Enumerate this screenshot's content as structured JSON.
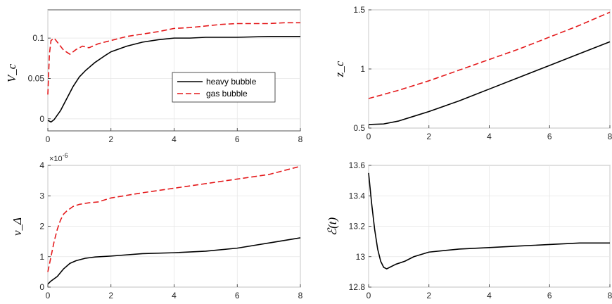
{
  "chart_data": [
    {
      "id": "vc",
      "type": "line",
      "ylabel": "V_c",
      "xlim": [
        0,
        8
      ],
      "ylim": [
        -0.015,
        0.135
      ],
      "xticks": [
        0,
        2,
        4,
        6,
        8
      ],
      "yticks": [
        0,
        0.05,
        0.1
      ],
      "ytick_labels": [
        "0",
        "0.05",
        "0.1"
      ],
      "grid": true,
      "legend": "center-right",
      "series": [
        {
          "name": "heavy bubble",
          "color": "#000000",
          "dash": "solid",
          "x": [
            0,
            0.1,
            0.2,
            0.4,
            0.6,
            0.8,
            1.0,
            1.2,
            1.5,
            1.8,
            2.0,
            2.5,
            3.0,
            3.5,
            4.0,
            4.5,
            5.0,
            6.0,
            7.0,
            8.0
          ],
          "y": [
            -0.002,
            -0.004,
            -0.001,
            0.01,
            0.025,
            0.04,
            0.052,
            0.06,
            0.07,
            0.078,
            0.083,
            0.09,
            0.095,
            0.098,
            0.1,
            0.1,
            0.101,
            0.101,
            0.102,
            0.102
          ]
        },
        {
          "name": "gas bubble",
          "color": "#e41a1c",
          "dash": "dashed",
          "x": [
            0,
            0.05,
            0.1,
            0.2,
            0.3,
            0.5,
            0.7,
            0.9,
            1.1,
            1.3,
            1.6,
            2.0,
            2.5,
            3.0,
            3.5,
            4.0,
            4.5,
            5.0,
            5.5,
            6.0,
            6.5,
            7.0,
            7.5,
            8.0
          ],
          "y": [
            0.03,
            0.08,
            0.097,
            0.1,
            0.095,
            0.085,
            0.08,
            0.086,
            0.09,
            0.088,
            0.093,
            0.097,
            0.102,
            0.105,
            0.108,
            0.112,
            0.113,
            0.115,
            0.117,
            0.118,
            0.118,
            0.118,
            0.119,
            0.119
          ]
        }
      ]
    },
    {
      "id": "zc",
      "type": "line",
      "ylabel": "z_c",
      "xlim": [
        0,
        8
      ],
      "ylim": [
        0.5,
        1.5
      ],
      "xticks": [
        0,
        2,
        4,
        6,
        8
      ],
      "yticks": [
        0.5,
        1,
        1.5
      ],
      "ytick_labels": [
        "0.5",
        "1",
        "1.5"
      ],
      "grid": true,
      "series": [
        {
          "name": "heavy bubble",
          "color": "#000000",
          "dash": "solid",
          "x": [
            0,
            0.5,
            1.0,
            1.5,
            2,
            3,
            4,
            5,
            6,
            7,
            8
          ],
          "y": [
            0.53,
            0.535,
            0.56,
            0.6,
            0.64,
            0.73,
            0.83,
            0.93,
            1.03,
            1.13,
            1.23
          ]
        },
        {
          "name": "gas bubble",
          "color": "#e41a1c",
          "dash": "dashed",
          "x": [
            0,
            1,
            2,
            3,
            4,
            5,
            6,
            7,
            8
          ],
          "y": [
            0.75,
            0.82,
            0.9,
            0.99,
            1.08,
            1.17,
            1.27,
            1.37,
            1.48
          ]
        }
      ]
    },
    {
      "id": "vdelta",
      "type": "line",
      "ylabel": "v_Δ",
      "exponent_label": "×10^-6",
      "xlim": [
        0,
        8
      ],
      "ylim": [
        0,
        4
      ],
      "xticks": [
        0,
        2,
        4,
        6,
        8
      ],
      "yticks": [
        0,
        1,
        2,
        3,
        4
      ],
      "ytick_labels": [
        "0",
        "1",
        "2",
        "3",
        "4"
      ],
      "grid": true,
      "series": [
        {
          "name": "heavy bubble",
          "color": "#000000",
          "dash": "solid",
          "x": [
            0,
            0.1,
            0.3,
            0.5,
            0.7,
            0.9,
            1.2,
            1.5,
            2,
            3,
            4,
            5,
            6,
            7,
            8
          ],
          "y": [
            0.1,
            0.2,
            0.35,
            0.6,
            0.78,
            0.87,
            0.95,
            0.99,
            1.02,
            1.1,
            1.13,
            1.18,
            1.28,
            1.45,
            1.62
          ]
        },
        {
          "name": "gas bubble",
          "color": "#e41a1c",
          "dash": "dashed",
          "x": [
            0,
            0.1,
            0.2,
            0.3,
            0.4,
            0.5,
            0.6,
            0.8,
            1.0,
            1.3,
            1.6,
            2,
            3,
            4,
            5,
            6,
            7,
            8
          ],
          "y": [
            0.5,
            1.0,
            1.5,
            1.9,
            2.2,
            2.4,
            2.5,
            2.65,
            2.72,
            2.77,
            2.8,
            2.93,
            3.1,
            3.25,
            3.4,
            3.55,
            3.7,
            3.97
          ]
        }
      ]
    },
    {
      "id": "energy",
      "type": "line",
      "ylabel": "ℰ(t)",
      "xlim": [
        0,
        8
      ],
      "ylim": [
        12.8,
        13.6
      ],
      "xticks": [
        0,
        2,
        4,
        6,
        8
      ],
      "yticks": [
        12.8,
        13,
        13.2,
        13.4,
        13.6
      ],
      "ytick_labels": [
        "12.8",
        "13",
        "13.2",
        "13.4",
        "13.6"
      ],
      "grid": true,
      "series": [
        {
          "name": "heavy bubble",
          "color": "#000000",
          "dash": "solid",
          "x": [
            0,
            0.1,
            0.2,
            0.3,
            0.4,
            0.5,
            0.6,
            0.7,
            0.9,
            1.2,
            1.5,
            2,
            2.5,
            3,
            4,
            5,
            6,
            7,
            8
          ],
          "y": [
            13.55,
            13.35,
            13.18,
            13.05,
            12.97,
            12.93,
            12.92,
            12.93,
            12.95,
            12.97,
            13.0,
            13.03,
            13.04,
            13.05,
            13.06,
            13.07,
            13.08,
            13.09,
            13.09
          ]
        }
      ]
    }
  ]
}
